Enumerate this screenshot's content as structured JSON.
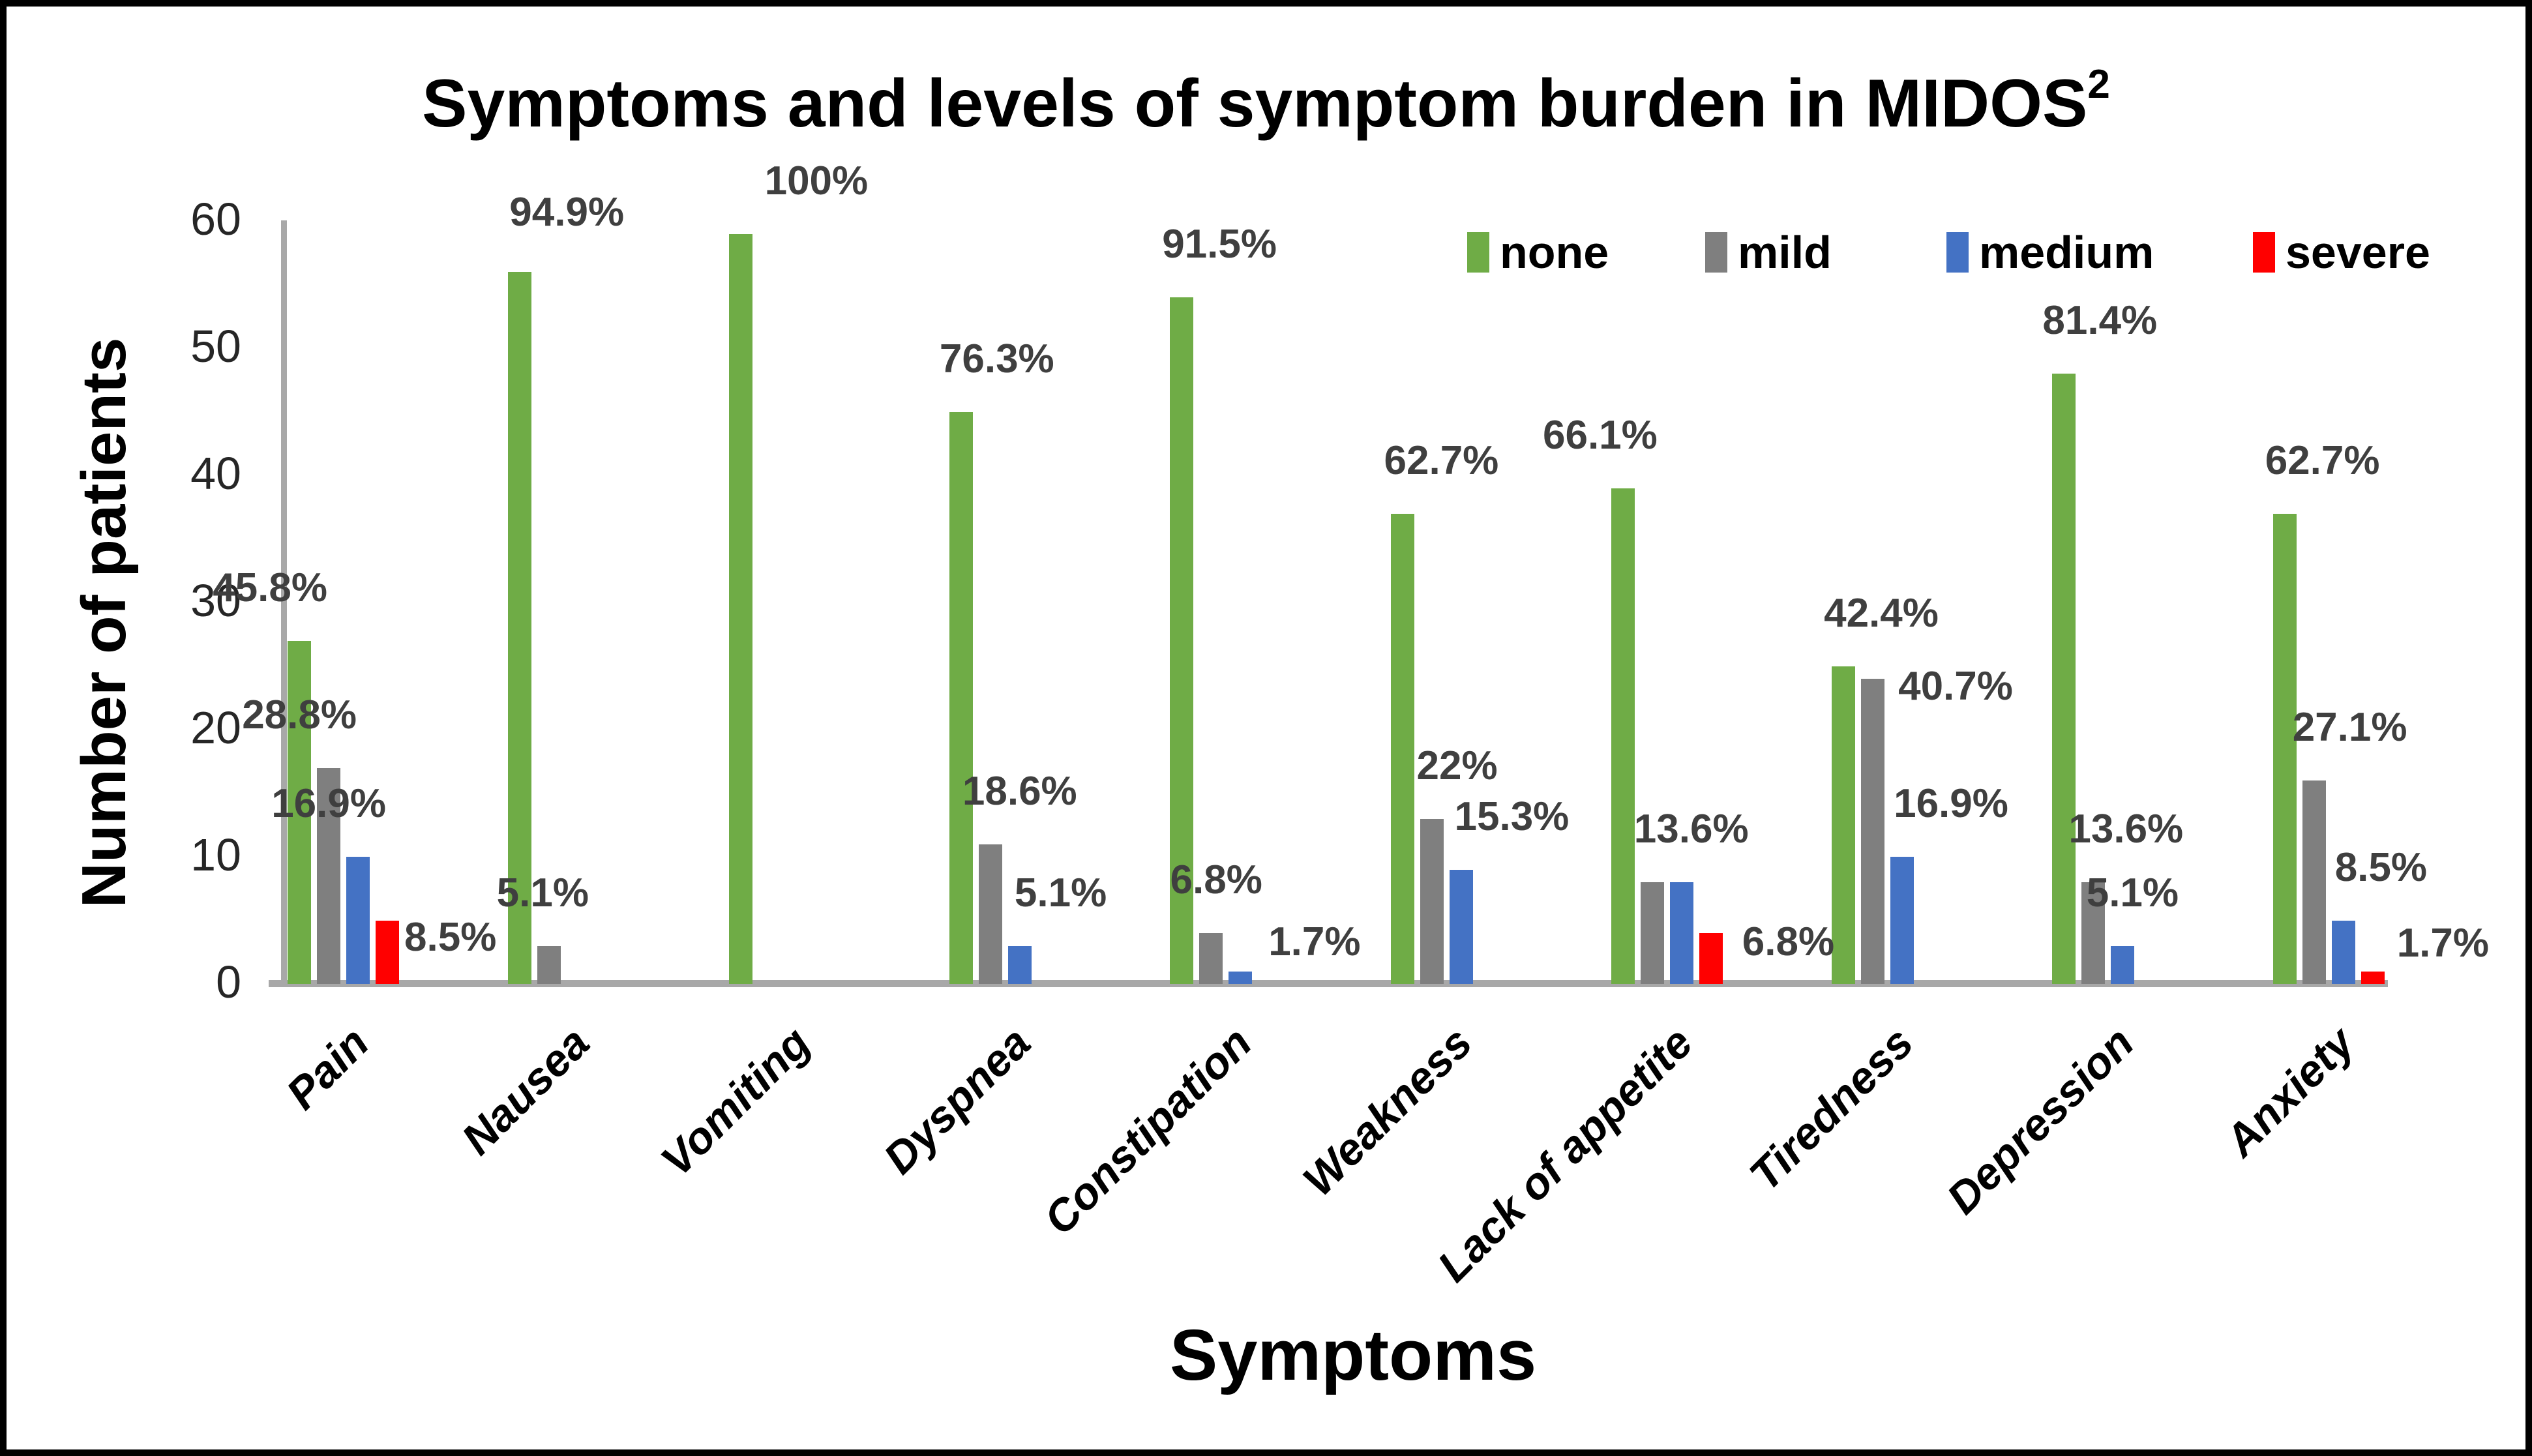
{
  "chart_data": {
    "type": "bar",
    "title": "Symptoms and levels of symptom burden in MIDOS",
    "title_superscript": "2",
    "xlabel": "Symptoms",
    "ylabel": "Number of patients",
    "ylim": [
      0,
      60
    ],
    "yticks": [
      0,
      10,
      20,
      30,
      40,
      50,
      60
    ],
    "grid": "off",
    "legend_position": "top-right-inside",
    "axis_line_color": "#A8A8A8",
    "value_label_color": "#3F3F3F",
    "legend": [
      {
        "name": "none",
        "color": "#6FAC46"
      },
      {
        "name": "mild",
        "color": "#7F7F7F"
      },
      {
        "name": "medium",
        "color": "#4472C4"
      },
      {
        "name": "severe",
        "color": "#FF0000"
      }
    ],
    "categories": [
      "Pain",
      "Nausea",
      "Vomiting",
      "Dyspnea",
      "Constipation",
      "Weakness",
      "Lack of appetite",
      "Tiredness",
      "Depression",
      "Anxiety"
    ],
    "groups": [
      {
        "category": "Pain",
        "bars": [
          {
            "series": "none",
            "value": 27,
            "label": "45.8%",
            "pl": {
              "m": "tr",
              "dx": 0
            }
          },
          {
            "series": "mild",
            "value": 17,
            "label": "28.8%",
            "pl": {
              "m": "tr",
              "dx": 0
            }
          },
          {
            "series": "medium",
            "value": 10,
            "label": "16.9%",
            "pl": {
              "m": "tr",
              "dx": 0
            }
          },
          {
            "series": "severe",
            "value": 5,
            "label": "8.5%",
            "pl": {
              "m": "sr",
              "dx": -14,
              "b": 1483
            }
          }
        ]
      },
      {
        "category": "Nausea",
        "bars": [
          {
            "series": "none",
            "value": 56,
            "label": "94.9%",
            "pl": {
              "m": "tl",
              "dx": 2,
              "dy": -10
            }
          },
          {
            "series": "mild",
            "value": 3,
            "label": "5.1%",
            "pl": {
              "m": "tc",
              "dx": -10
            }
          }
        ]
      },
      {
        "category": "Vomiting",
        "bars": [
          {
            "series": "none",
            "value": 59,
            "label": "100%",
            "pl": {
              "m": "tl",
              "dx": 55
            }
          }
        ]
      },
      {
        "category": "Dyspnea",
        "bars": [
          {
            "series": "none",
            "value": 45,
            "label": "76.3%",
            "pl": {
              "m": "tl",
              "dx": -15
            }
          },
          {
            "series": "mild",
            "value": 11,
            "label": "18.6%",
            "pl": {
              "m": "tl",
              "dx": -25
            }
          },
          {
            "series": "medium",
            "value": 3,
            "label": "5.1%",
            "pl": {
              "m": "tl",
              "dx": 10
            }
          }
        ]
      },
      {
        "category": "Constipation",
        "bars": [
          {
            "series": "none",
            "value": 54,
            "label": "91.5%",
            "pl": {
              "m": "tl",
              "dx": -12
            }
          },
          {
            "series": "mild",
            "value": 4,
            "label": "6.8%",
            "pl": {
              "m": "tc",
              "dx": 8
            }
          },
          {
            "series": "medium",
            "value": 1,
            "label": "1.7%",
            "pl": {
              "m": "sr",
              "dx": 3,
              "b": 1490
            }
          }
        ]
      },
      {
        "category": "Weakness",
        "bars": [
          {
            "series": "none",
            "value": 37,
            "label": "62.7%",
            "pl": {
              "m": "tl",
              "dx": -10
            }
          },
          {
            "series": "mild",
            "value": 13,
            "label": "22%",
            "pl": {
              "m": "tl",
              "dx": -5
            }
          },
          {
            "series": "medium",
            "value": 9,
            "label": "15.3%",
            "pl": {
              "m": "tl",
              "dx": 8
            }
          }
        ]
      },
      {
        "category": "Lack of appetite",
        "bars": [
          {
            "series": "none",
            "value": 39,
            "label": "66.1%",
            "pl": {
              "m": "tr",
              "dx": 10
            }
          },
          {
            "series": "mild",
            "value": 8,
            "label": "13.6%",
            "pl": {
              "m": "tl",
              "dx": -10
            }
          },
          {
            "series": "medium",
            "value": 8,
            "label": null
          },
          {
            "series": "severe",
            "value": 4,
            "label": "6.8%",
            "pl": {
              "m": "sr",
              "dx": 8,
              "b": 1490
            }
          }
        ]
      },
      {
        "category": "Tiredness",
        "bars": [
          {
            "series": "none",
            "value": 25,
            "label": "42.4%",
            "pl": {
              "m": "tl",
              "dx": -12
            }
          },
          {
            "series": "mild",
            "value": 24,
            "label": "40.7%",
            "pl": {
              "m": "sr",
              "dx": -1,
              "b": 1098
            }
          },
          {
            "series": "medium",
            "value": 10,
            "label": "16.9%",
            "pl": {
              "m": "tl",
              "dx": 5
            }
          }
        ]
      },
      {
        "category": "Depression",
        "bars": [
          {
            "series": "none",
            "value": 48,
            "label": "81.4%",
            "pl": {
              "m": "tl",
              "dx": -15
            }
          },
          {
            "series": "mild",
            "value": 8,
            "label": "13.6%",
            "pl": {
              "m": "tl",
              "dx": -20
            }
          },
          {
            "series": "medium",
            "value": 3,
            "label": "5.1%",
            "pl": {
              "m": "tc",
              "dx": 15
            }
          }
        ]
      },
      {
        "category": "Anxiety",
        "bars": [
          {
            "series": "none",
            "value": 37,
            "label": "62.7%",
            "pl": {
              "m": "tl",
              "dx": -12
            }
          },
          {
            "series": "mild",
            "value": 16,
            "label": "27.1%",
            "pl": {
              "m": "tl",
              "dx": -15
            }
          },
          {
            "series": "medium",
            "value": 5,
            "label": "8.5%",
            "pl": {
              "m": "tl",
              "dx": 5
            }
          },
          {
            "series": "severe",
            "value": 1,
            "label": "1.7%",
            "pl": {
              "m": "sr",
              "dx": -3,
              "b": 1492
            }
          }
        ]
      }
    ]
  }
}
